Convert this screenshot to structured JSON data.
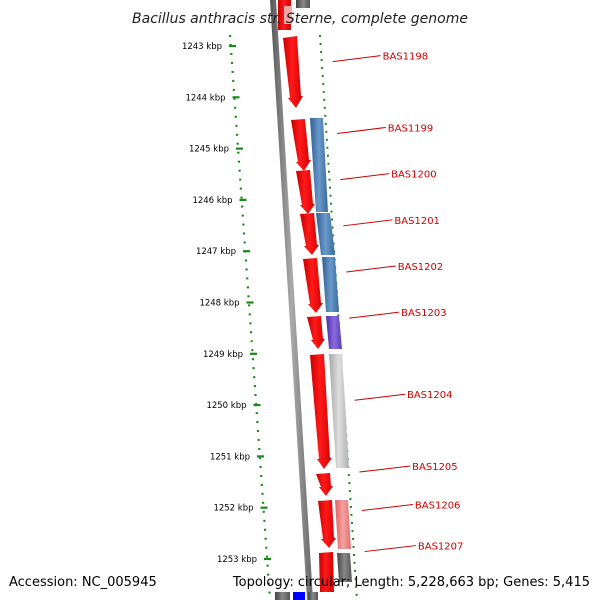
{
  "title": "Bacillus anthracis str. Sterne, complete genome",
  "footer": {
    "accession": "Accession: NC_005945",
    "topology": "Topology: circular; Length: 5,228,663 bp; Genes: 5,415"
  },
  "axis": {
    "unit": "kbp",
    "tick_labels": [
      "1243 kbp",
      "1244 kbp",
      "1245 kbp",
      "1246 kbp",
      "1247 kbp",
      "1248 kbp",
      "1249 kbp",
      "1250 kbp",
      "1251 kbp",
      "1252 kbp",
      "1253 kbp"
    ]
  },
  "colors": {
    "cds_forward": "#ff0000",
    "cds_pale": "#f08080",
    "blast_blue": "#4f7fb0",
    "blast_purple": "#7050c8",
    "blast_grey": "#bdbdbd",
    "blast_dark": "#666666",
    "label": "#cc0000",
    "axis_dots": "#1a8a1a"
  },
  "genes": [
    {
      "name": "BAS1198",
      "start_kbp": 1242.8,
      "end_kbp": 1244.2
    },
    {
      "name": "BAS1199",
      "start_kbp": 1244.4,
      "end_kbp": 1245.4
    },
    {
      "name": "BAS1200",
      "start_kbp": 1245.4,
      "end_kbp": 1246.2
    },
    {
      "name": "BAS1201",
      "start_kbp": 1246.3,
      "end_kbp": 1247.1
    },
    {
      "name": "BAS1202",
      "start_kbp": 1247.1,
      "end_kbp": 1248.1
    },
    {
      "name": "BAS1203",
      "start_kbp": 1248.2,
      "end_kbp": 1248.8
    },
    {
      "name": "BAS1204",
      "start_kbp": 1249.0,
      "end_kbp": 1251.2
    },
    {
      "name": "BAS1205",
      "start_kbp": 1251.3,
      "end_kbp": 1251.7
    },
    {
      "name": "BAS1206",
      "start_kbp": 1251.8,
      "end_kbp": 1252.7
    },
    {
      "name": "BAS1207",
      "start_kbp": 1252.8,
      "end_kbp": 1253.3
    }
  ]
}
